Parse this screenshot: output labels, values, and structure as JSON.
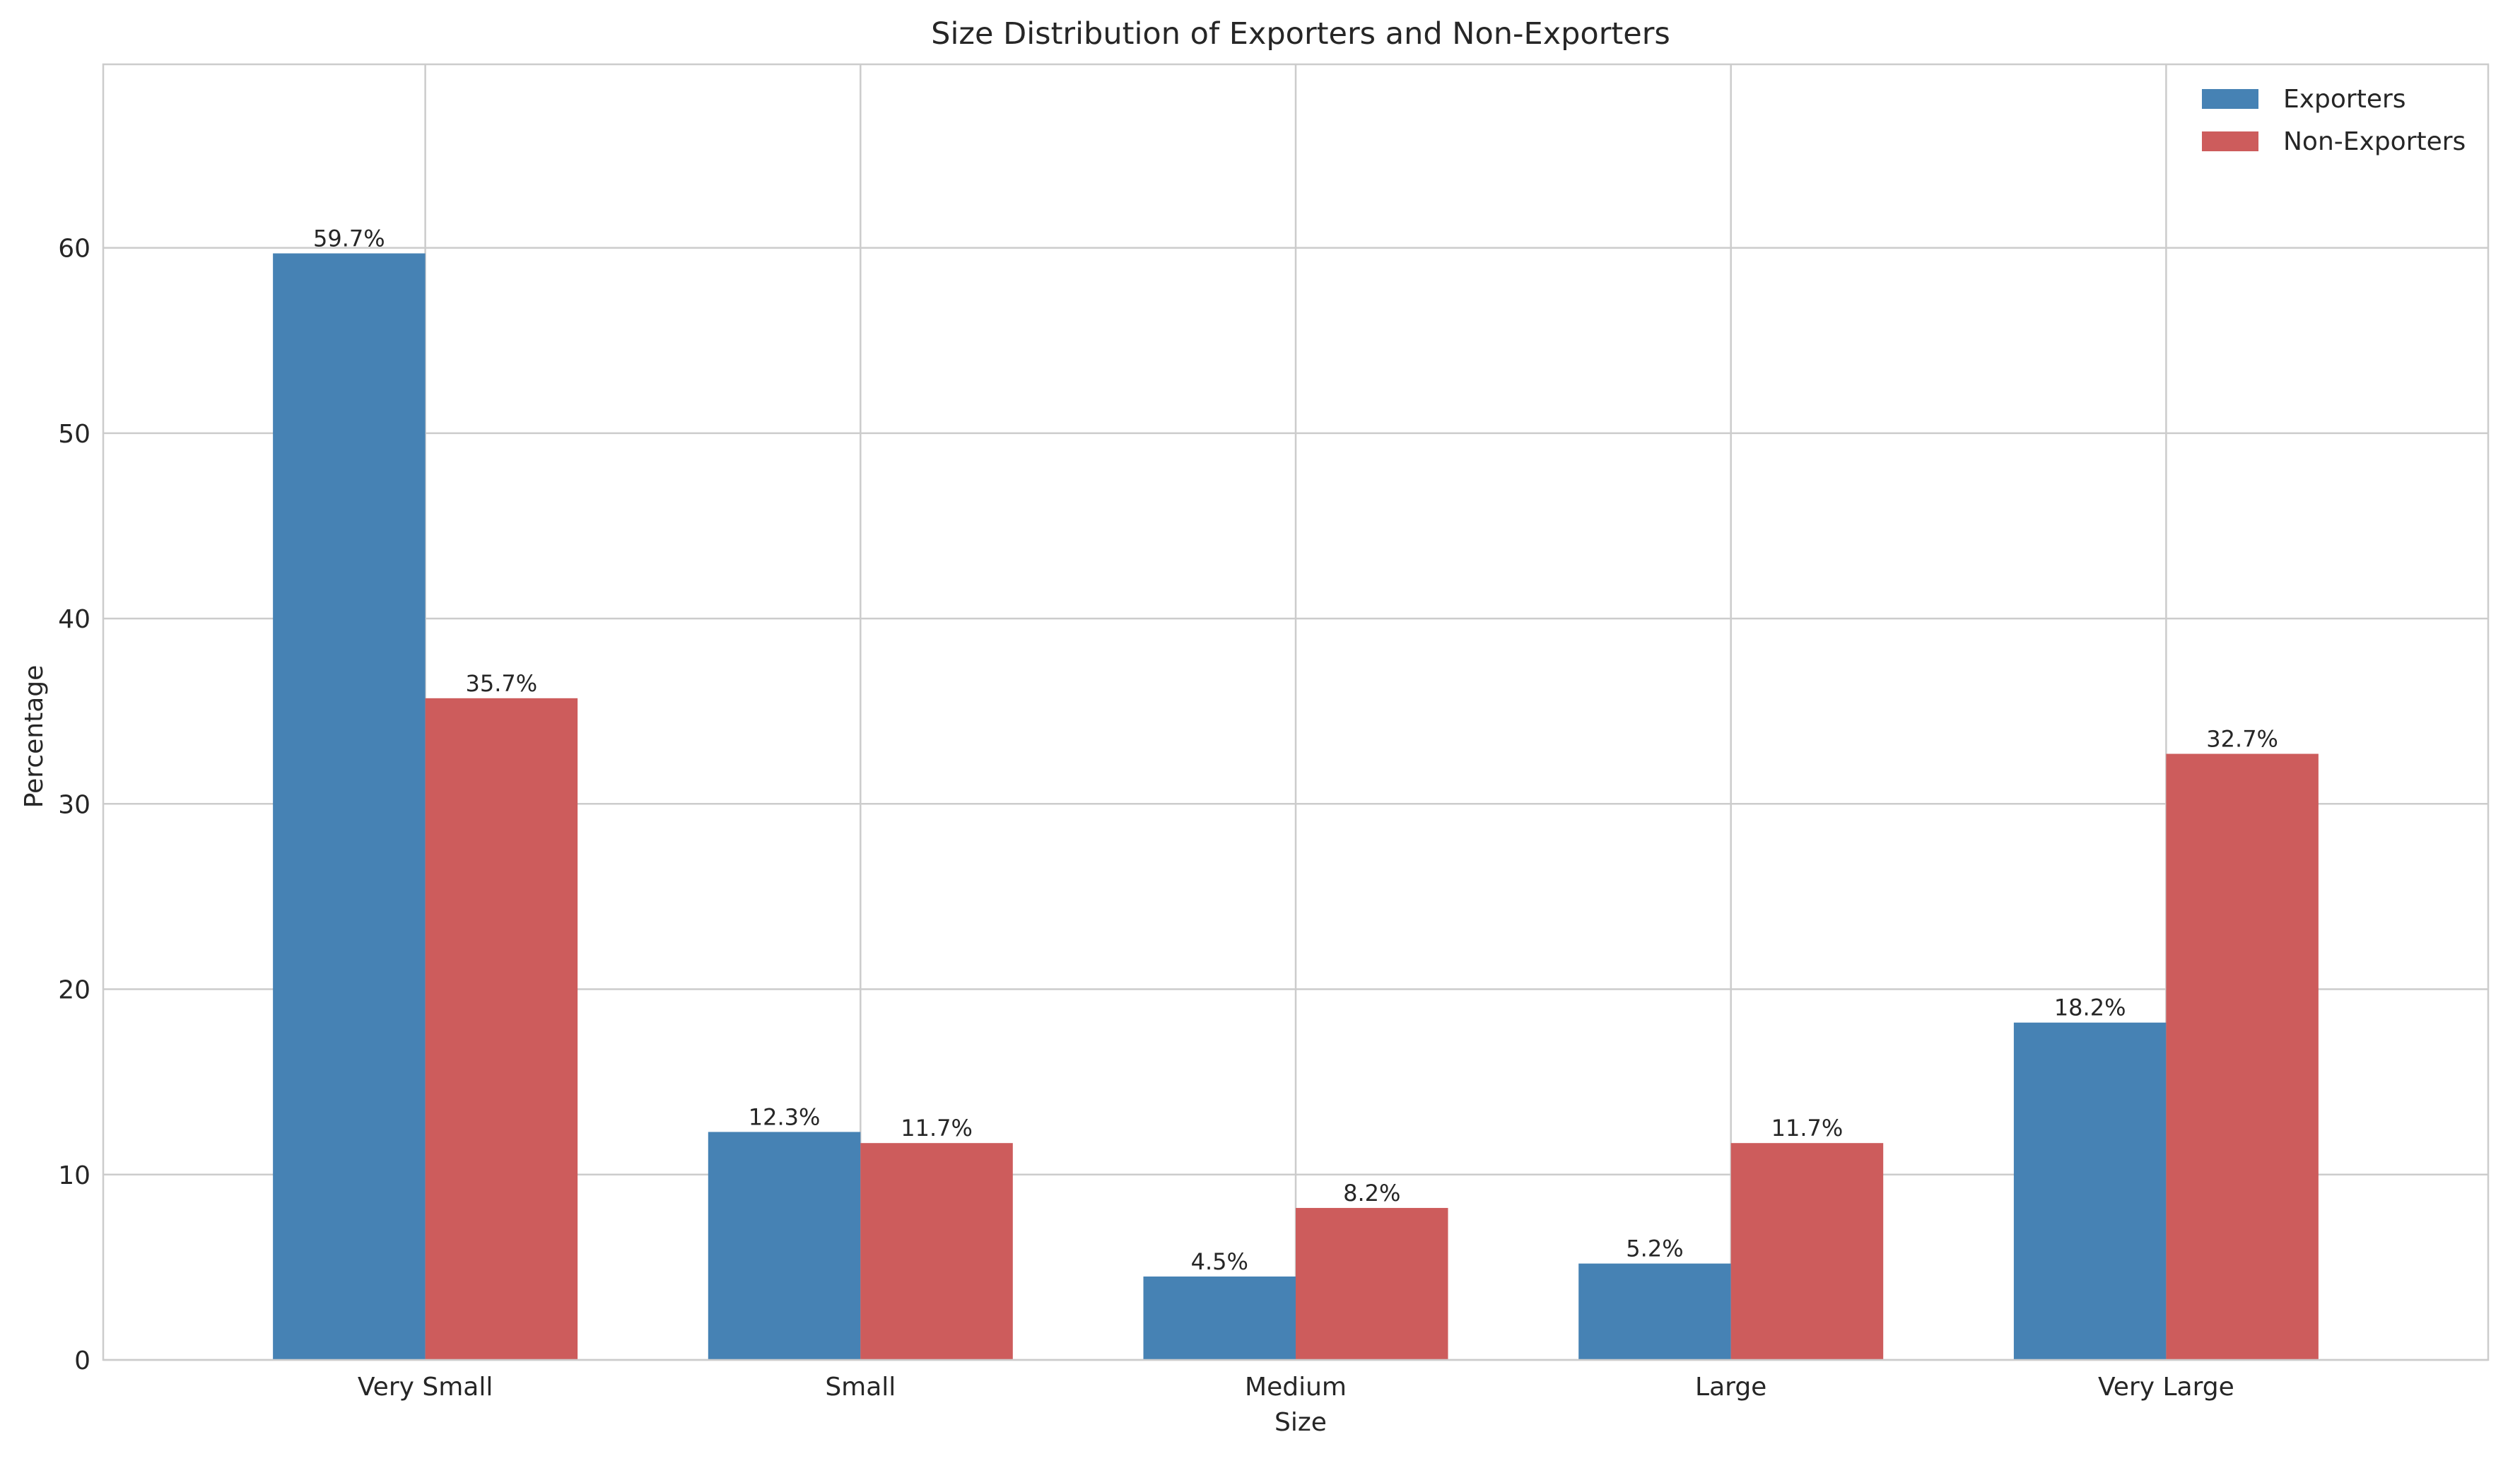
{
  "chart_data": {
    "type": "bar",
    "title": "Size Distribution of Exporters and Non-Exporters",
    "xlabel": "Size",
    "ylabel": "Percentage",
    "categories": [
      "Very Small",
      "Small",
      "Medium",
      "Large",
      "Very Large"
    ],
    "series": [
      {
        "name": "Exporters",
        "color": "#4682b4",
        "values": [
          59.7,
          12.3,
          4.5,
          5.2,
          18.2
        ],
        "labels": [
          "59.7%",
          "12.3%",
          "4.5%",
          "5.2%",
          "18.2%"
        ]
      },
      {
        "name": "Non-Exporters",
        "color": "#cd5c5c",
        "values": [
          35.7,
          11.7,
          8.2,
          11.7,
          32.7
        ],
        "labels": [
          "35.7%",
          "11.7%",
          "8.2%",
          "11.7%",
          "32.7%"
        ]
      }
    ],
    "ylim": [
      0,
      69.9
    ],
    "yticks": [
      0,
      10,
      20,
      30,
      40,
      50,
      60
    ],
    "grid": true,
    "legend_position": "top-right"
  }
}
